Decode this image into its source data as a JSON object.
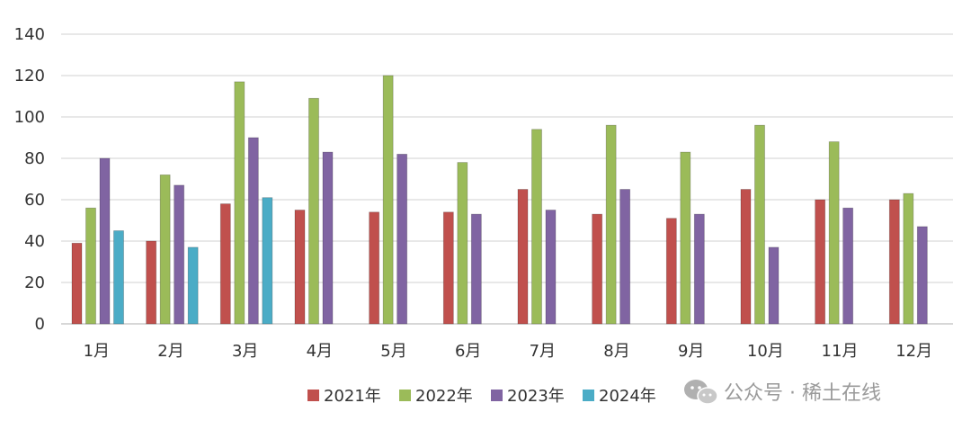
{
  "chart_data": {
    "type": "bar",
    "categories": [
      "1月",
      "2月",
      "3月",
      "4月",
      "5月",
      "6月",
      "7月",
      "8月",
      "9月",
      "10月",
      "11月",
      "12月"
    ],
    "series": [
      {
        "name": "2021年",
        "color": "#c0504d",
        "values": [
          39,
          40,
          58,
          55,
          54,
          54,
          65,
          53,
          51,
          65,
          60,
          60
        ]
      },
      {
        "name": "2022年",
        "color": "#9bbb59",
        "values": [
          56,
          72,
          117,
          109,
          120,
          78,
          94,
          96,
          83,
          96,
          88,
          63
        ]
      },
      {
        "name": "2023年",
        "color": "#8064a2",
        "values": [
          80,
          67,
          90,
          83,
          82,
          53,
          55,
          65,
          53,
          37,
          56,
          47
        ]
      },
      {
        "name": "2024年",
        "color": "#4bacc6",
        "values": [
          45,
          37,
          61,
          null,
          null,
          null,
          null,
          null,
          null,
          null,
          null,
          null
        ]
      }
    ],
    "ylim": [
      0,
      140
    ],
    "yticks": [
      0,
      20,
      40,
      60,
      80,
      100,
      120,
      140
    ],
    "grid": true,
    "legend_position": "bottom"
  },
  "watermark": {
    "text": "公众号 · 稀土在线",
    "icon": "wechat-icon"
  }
}
